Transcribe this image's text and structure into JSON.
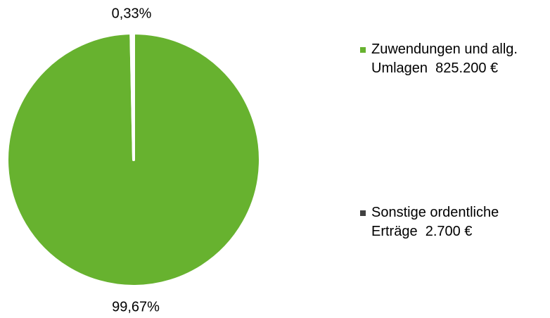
{
  "chart_data": {
    "type": "pie",
    "categories": [
      "Zuwendungen und allg. Umlagen  825.200 €",
      "Sonstige ordentliche Erträge  2.700 €"
    ],
    "values": [
      99.67,
      0.33
    ],
    "value_labels": [
      "99,67%",
      "0,33%"
    ],
    "colors": [
      "#67b22f",
      "#404040"
    ],
    "legend": "right"
  }
}
